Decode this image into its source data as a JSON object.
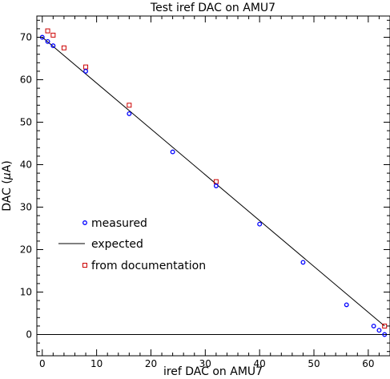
{
  "chart_data": {
    "type": "scatter",
    "title": "Test iref DAC on AMU7",
    "xlabel": "iref DAC on AMU7",
    "ylabel_prefix": "DAC (",
    "ylabel_mu": "μ",
    "ylabel_suffix": "A)",
    "xlim": [
      -1,
      64
    ],
    "ylim": [
      -5,
      75
    ],
    "x_ticks": [
      0,
      10,
      20,
      30,
      40,
      50,
      60
    ],
    "y_ticks": [
      0,
      10,
      20,
      30,
      40,
      50,
      60,
      70
    ],
    "legend_position": "lower-left",
    "series": [
      {
        "name": "measured",
        "marker": "circle",
        "color": "#0000ff",
        "points": [
          [
            0,
            70
          ],
          [
            1,
            69
          ],
          [
            2,
            68
          ],
          [
            8,
            62
          ],
          [
            16,
            52
          ],
          [
            24,
            43
          ],
          [
            32,
            35
          ],
          [
            40,
            26
          ],
          [
            48,
            17
          ],
          [
            56,
            7
          ],
          [
            61,
            2
          ],
          [
            62,
            1
          ],
          [
            63,
            0
          ]
        ]
      },
      {
        "name": "expected",
        "marker": "line",
        "color": "#000000",
        "points": [
          [
            0,
            70
          ],
          [
            63,
            2
          ]
        ]
      },
      {
        "name": "from documentation",
        "marker": "square",
        "color": "#cc0000",
        "points": [
          [
            1,
            71.5
          ],
          [
            2,
            70.5
          ],
          [
            4,
            67.5
          ],
          [
            8,
            63
          ],
          [
            16,
            54
          ],
          [
            32,
            36
          ],
          [
            63,
            2
          ]
        ]
      }
    ],
    "reference_line_y": 0
  }
}
